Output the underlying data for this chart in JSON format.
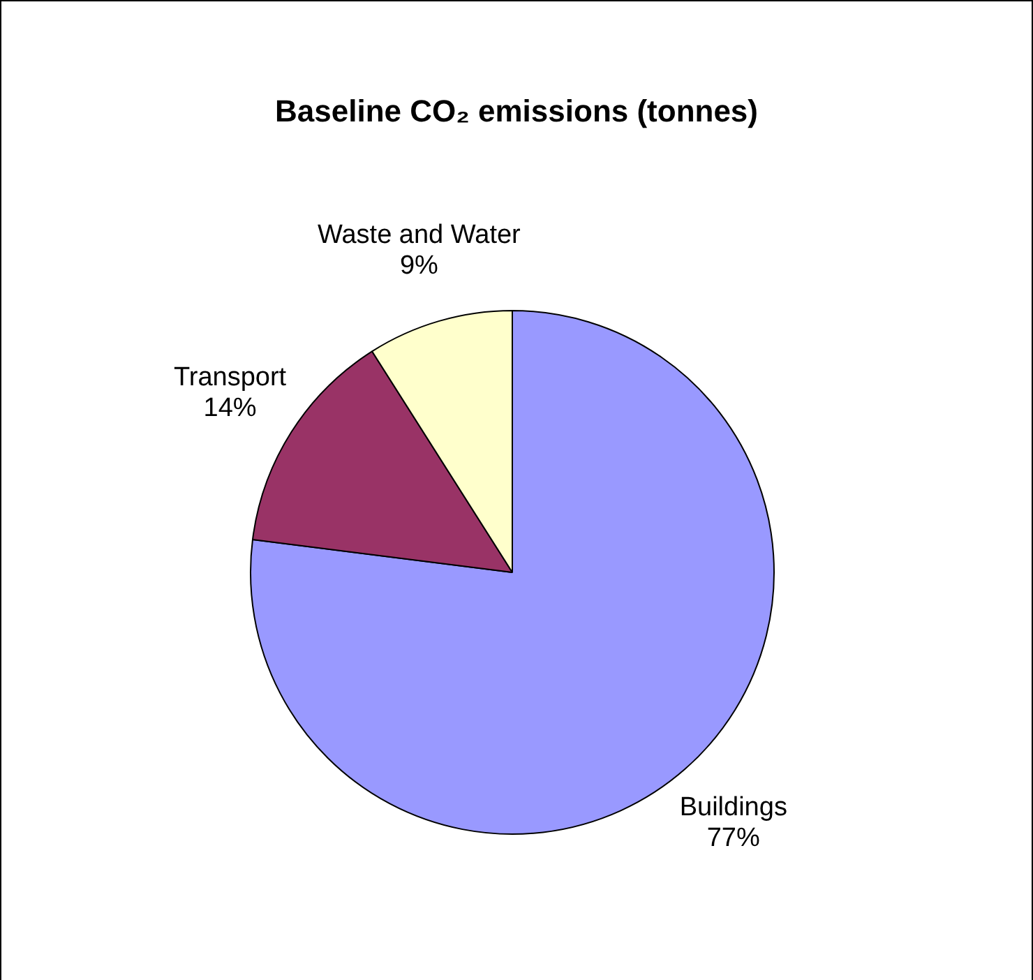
{
  "chart_data": {
    "type": "pie",
    "title": "Baseline CO₂ emissions (tonnes)",
    "categories": [
      "Buildings",
      "Transport",
      "Waste and Water"
    ],
    "values": [
      77,
      14,
      9
    ],
    "colors": [
      "#9999ff",
      "#993366",
      "#ffffcc"
    ],
    "value_labels": [
      "77%",
      "14%",
      "9%"
    ],
    "legend": false
  }
}
